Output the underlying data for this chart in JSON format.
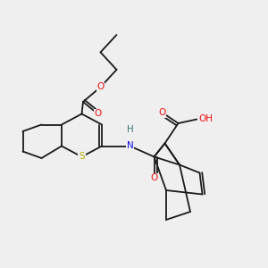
{
  "background_color": "#efefef",
  "atom_colors": {
    "C": "#1a1a1a",
    "O": "#ee1111",
    "N": "#1111ee",
    "S": "#bbaa00",
    "H": "#337777"
  },
  "lw": 1.3,
  "fontsize": 7.5
}
